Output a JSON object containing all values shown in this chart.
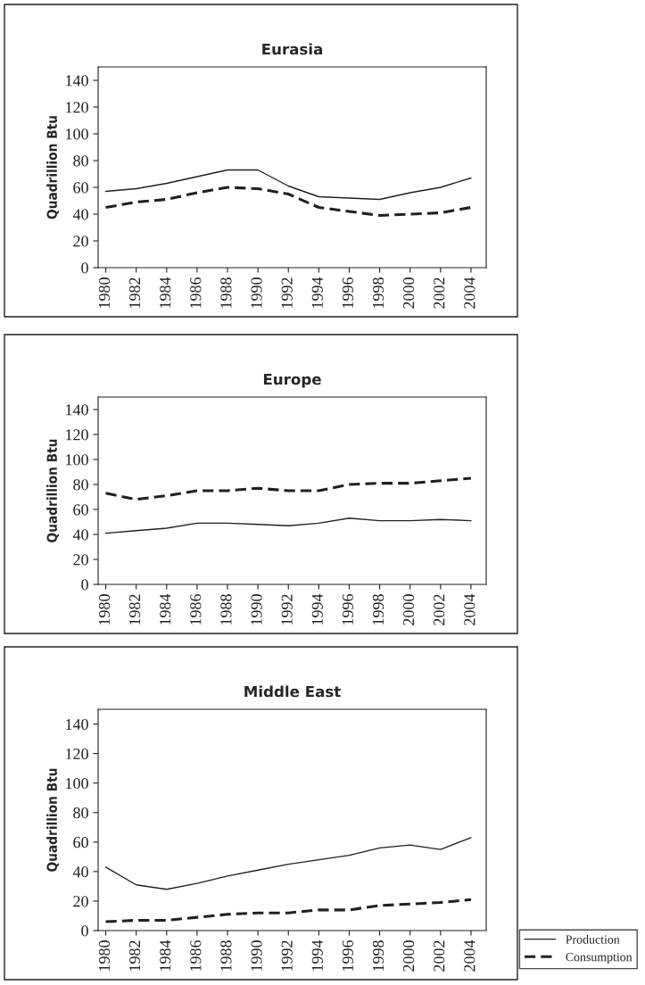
{
  "chart_data": [
    {
      "type": "line",
      "title": "Eurasia",
      "ylabel": "Quadrillion Btu",
      "x": [
        1980,
        1982,
        1984,
        1986,
        1988,
        1990,
        1992,
        1994,
        1996,
        1998,
        2000,
        2002,
        2004
      ],
      "xlim": [
        1979.5,
        2005
      ],
      "xticks": [
        1980,
        1982,
        1984,
        1986,
        1988,
        1990,
        1992,
        1994,
        1996,
        1998,
        2000,
        2002,
        2004
      ],
      "ylim": [
        0,
        150
      ],
      "yticks": [
        0,
        20,
        40,
        60,
        80,
        100,
        120,
        140
      ],
      "grid": false,
      "series": [
        {
          "color": "#231f20",
          "line_style": "solid",
          "values": [
            57,
            59,
            63,
            68,
            73,
            73,
            61,
            53,
            52,
            51,
            56,
            60,
            67
          ]
        },
        {
          "color": "#231f20",
          "line_style": "dashed",
          "values": [
            45,
            49,
            51,
            56,
            60,
            59,
            55,
            45,
            42,
            39,
            40,
            41,
            45
          ]
        }
      ]
    },
    {
      "type": "line",
      "title": "Europe",
      "ylabel": "Quadrillion Btu",
      "x": [
        1980,
        1982,
        1984,
        1986,
        1988,
        1990,
        1992,
        1994,
        1996,
        1998,
        2000,
        2002,
        2004
      ],
      "xlim": [
        1979.5,
        2005
      ],
      "xticks": [
        1980,
        1982,
        1984,
        1986,
        1988,
        1990,
        1992,
        1994,
        1996,
        1998,
        2000,
        2002,
        2004
      ],
      "ylim": [
        0,
        150
      ],
      "yticks": [
        0,
        20,
        40,
        60,
        80,
        100,
        120,
        140
      ],
      "grid": false,
      "series": [
        {
          "color": "#231f20",
          "line_style": "solid",
          "values": [
            41,
            43,
            45,
            49,
            49,
            48,
            47,
            49,
            53,
            51,
            51,
            52,
            51
          ]
        },
        {
          "color": "#231f20",
          "line_style": "dashed",
          "values": [
            73,
            68,
            71,
            75,
            75,
            77,
            75,
            75,
            80,
            81,
            81,
            83,
            85
          ]
        }
      ]
    },
    {
      "type": "line",
      "title": "Middle East",
      "ylabel": "Quadrillion Btu",
      "x": [
        1980,
        1982,
        1984,
        1986,
        1988,
        1990,
        1992,
        1994,
        1996,
        1998,
        2000,
        2002,
        2004
      ],
      "xlim": [
        1979.5,
        2005
      ],
      "xticks": [
        1980,
        1982,
        1984,
        1986,
        1988,
        1990,
        1992,
        1994,
        1996,
        1998,
        2000,
        2002,
        2004
      ],
      "ylim": [
        0,
        150
      ],
      "yticks": [
        0,
        20,
        40,
        60,
        80,
        100,
        120,
        140
      ],
      "grid": false,
      "legend": "bottom right",
      "series": [
        {
          "name": "Production",
          "color": "#231f20",
          "line_style": "solid",
          "values": [
            43,
            31,
            28,
            32,
            37,
            41,
            45,
            48,
            51,
            56,
            58,
            55,
            63
          ]
        },
        {
          "name": "Consumption",
          "color": "#231f20",
          "line_style": "dashed",
          "values": [
            6,
            7,
            7,
            9,
            11,
            12,
            12,
            14,
            14,
            17,
            18,
            19,
            21
          ]
        }
      ]
    }
  ]
}
